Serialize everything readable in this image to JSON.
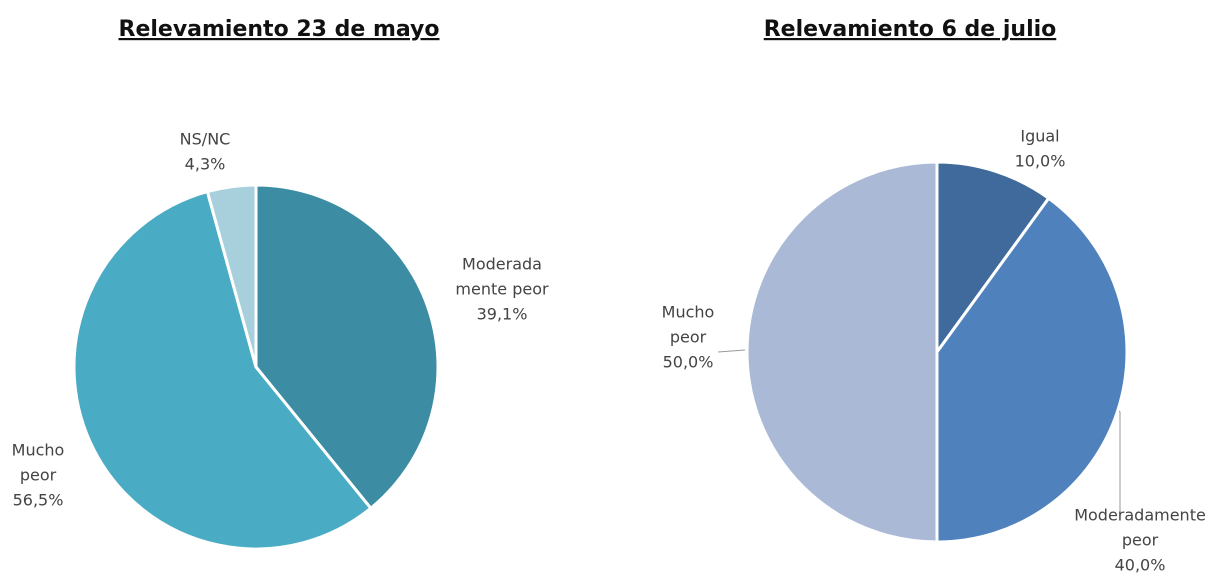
{
  "chart_data": [
    {
      "type": "pie",
      "title": "Relevamiento 23 de mayo",
      "categories": [
        [
          "Moderada",
          "mente peor"
        ],
        [
          "Mucho",
          "peor"
        ],
        [
          "NS/NC"
        ]
      ],
      "values": [
        39.1,
        56.5,
        4.3
      ],
      "value_labels": [
        "39,1%",
        "56,5%",
        "4,3%"
      ],
      "colors": [
        "#3c8ca3",
        "#4aabc4",
        "#a8cfdc"
      ]
    },
    {
      "type": "pie",
      "title": "Relevamiento 6 de julio",
      "categories": [
        [
          "Igual"
        ],
        [
          "Moderadamente",
          "peor"
        ],
        [
          "Mucho",
          "peor"
        ]
      ],
      "values": [
        10.0,
        40.0,
        50.0
      ],
      "value_labels": [
        "10,0%",
        "40,0%",
        "50,0%"
      ],
      "colors": [
        "#3f6a9b",
        "#4f81bd",
        "#aabad6"
      ]
    }
  ]
}
